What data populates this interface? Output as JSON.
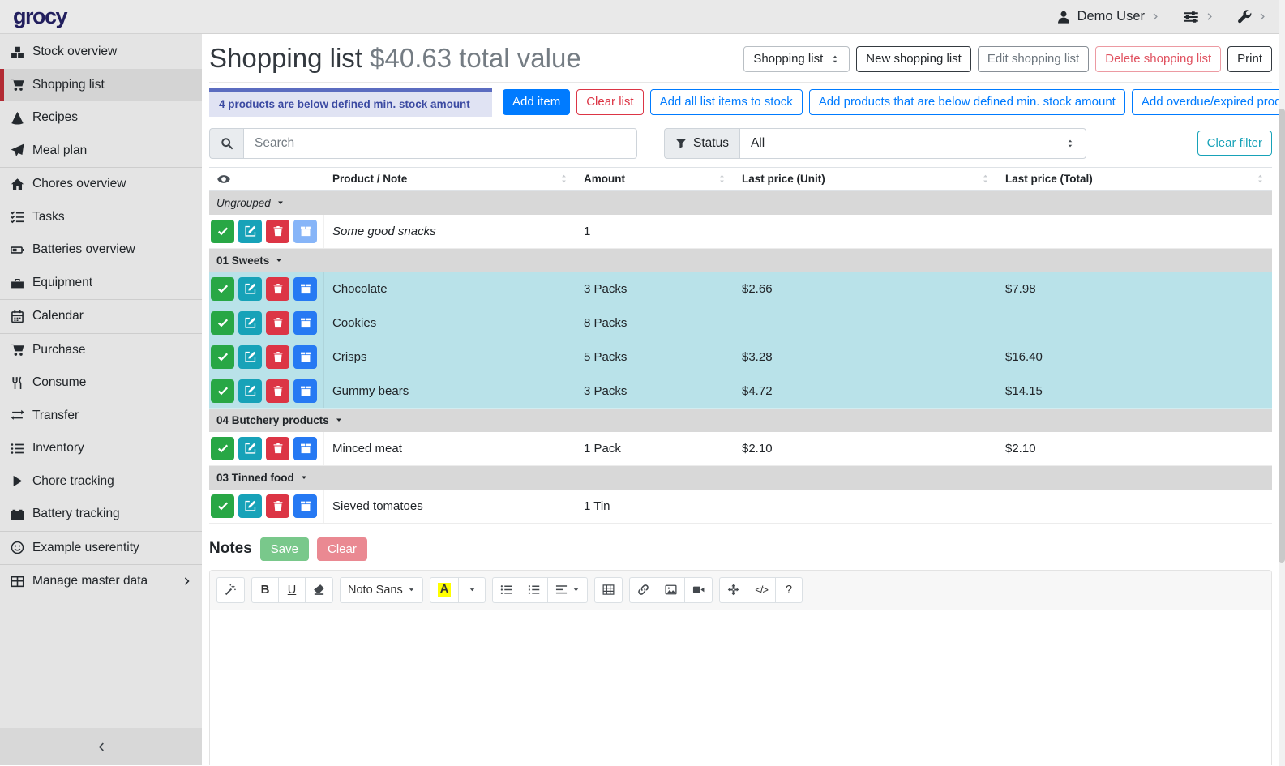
{
  "topbar": {
    "logo": "grocy",
    "user_menu": {
      "label": "Demo User"
    }
  },
  "sidebar": {
    "items": [
      {
        "label": "Stock overview",
        "icon": "boxes"
      },
      {
        "label": "Shopping list",
        "icon": "cart",
        "active": true
      },
      {
        "label": "Recipes",
        "icon": "pizza"
      },
      {
        "label": "Meal plan",
        "icon": "paper-plane",
        "separator_after": true
      },
      {
        "label": "Chores overview",
        "icon": "home"
      },
      {
        "label": "Tasks",
        "icon": "tasks"
      },
      {
        "label": "Batteries overview",
        "icon": "battery"
      },
      {
        "label": "Equipment",
        "icon": "toolbox",
        "separator_after": true
      },
      {
        "label": "Calendar",
        "icon": "calendar",
        "separator_after": true
      },
      {
        "label": "Purchase",
        "icon": "cart"
      },
      {
        "label": "Consume",
        "icon": "utensils"
      },
      {
        "label": "Transfer",
        "icon": "exchange"
      },
      {
        "label": "Inventory",
        "icon": "list"
      },
      {
        "label": "Chore tracking",
        "icon": "play"
      },
      {
        "label": "Battery tracking",
        "icon": "car-battery",
        "separator_after": true
      },
      {
        "label": "Example userentity",
        "icon": "smiley",
        "separator_after": true
      },
      {
        "label": "Manage master data",
        "icon": "table",
        "chevron": true
      }
    ]
  },
  "header": {
    "title": "Shopping list",
    "subtitle": "$40.63 total value"
  },
  "list_toolbar": {
    "select_value": "Shopping list",
    "buttons": [
      {
        "label": "New shopping list",
        "variant": "dark",
        "name": "new-shopping-list-button"
      },
      {
        "label": "Edit shopping list",
        "variant": "secondary",
        "name": "edit-shopping-list-button"
      },
      {
        "label": "Delete shopping list",
        "variant": "danger-soft",
        "name": "delete-shopping-list-button"
      },
      {
        "label": "Print",
        "variant": "dark",
        "name": "print-button"
      }
    ]
  },
  "banner": {
    "text": "4 products are below defined min. stock amount"
  },
  "actions": [
    {
      "label": "Add item",
      "variant": "primary-solid",
      "name": "add-item-button"
    },
    {
      "label": "Clear list",
      "variant": "danger-outline",
      "name": "clear-list-button"
    },
    {
      "label": "Add all list items to stock",
      "variant": "primary-outline",
      "name": "add-all-list-items-to-stock-button"
    },
    {
      "label": "Add products that are below defined min. stock amount",
      "variant": "primary-outline",
      "name": "add-below-min-stock-button"
    },
    {
      "label": "Add overdue/expired products",
      "variant": "primary-outline",
      "name": "add-overdue-expired-button"
    }
  ],
  "filters": {
    "search_placeholder": "Search",
    "status_label": "Status",
    "status_value": "All",
    "clear_label": "Clear filter"
  },
  "table": {
    "columns": [
      "Product / Note",
      "Amount",
      "Last price (Unit)",
      "Last price (Total)"
    ],
    "groups": [
      {
        "name": "Ungrouped",
        "italic": true,
        "rows": [
          {
            "product": "Some good snacks",
            "is_note": true,
            "amount": "1",
            "unit_price": "",
            "total_price": "",
            "highlighted": false,
            "stock_btn_faded": true
          }
        ]
      },
      {
        "name": "01 Sweets",
        "rows": [
          {
            "product": "Chocolate",
            "amount": "3 Packs",
            "unit_price": "$2.66",
            "total_price": "$7.98",
            "highlighted": true
          },
          {
            "product": "Cookies",
            "amount": "8 Packs",
            "unit_price": "",
            "total_price": "",
            "highlighted": true
          },
          {
            "product": "Crisps",
            "amount": "5 Packs",
            "unit_price": "$3.28",
            "total_price": "$16.40",
            "highlighted": true
          },
          {
            "product": "Gummy bears",
            "amount": "3 Packs",
            "unit_price": "$4.72",
            "total_price": "$14.15",
            "highlighted": true
          }
        ]
      },
      {
        "name": "04 Butchery products",
        "rows": [
          {
            "product": "Minced meat",
            "amount": "1 Pack",
            "unit_price": "$2.10",
            "total_price": "$2.10",
            "highlighted": false
          }
        ]
      },
      {
        "name": "03 Tinned food",
        "rows": [
          {
            "product": "Sieved tomatoes",
            "amount": "1 Tin",
            "unit_price": "",
            "total_price": "",
            "highlighted": false
          }
        ]
      }
    ]
  },
  "notes": {
    "title": "Notes",
    "save_label": "Save",
    "clear_label": "Clear"
  },
  "editor": {
    "font_name": "Noto Sans",
    "bold_glyph": "B",
    "underline_glyph": "U",
    "color_glyph": "A",
    "codeview_glyph": "</>",
    "help_glyph": "?"
  },
  "colors": {
    "accent_blue": "#007bff",
    "success_green": "#28a745",
    "info_teal": "#17a2b8",
    "danger_red": "#dc3545",
    "row_highlight": "#b9e2e9",
    "banner_bg": "#e0e3f3",
    "banner_bar": "#5b6cc0",
    "active_item_marker": "#b22a33",
    "logo_navy": "#221f5e"
  }
}
